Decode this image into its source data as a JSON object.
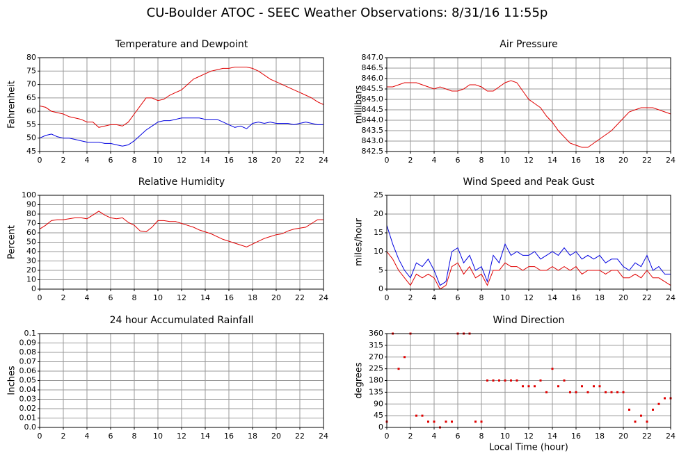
{
  "title": "CU-Boulder ATOC - SEEC Weather Observations: 8/31/16 11:55p",
  "chart_data": [
    {
      "type": "line",
      "title": "Temperature and Dewpoint",
      "y_label": "Fahrenheit",
      "x": [
        0,
        0.5,
        1,
        1.5,
        2,
        2.5,
        3,
        3.5,
        4,
        4.5,
        5,
        5.5,
        6,
        6.5,
        7,
        7.5,
        8,
        8.5,
        9,
        9.5,
        10,
        10.5,
        11,
        11.5,
        12,
        12.5,
        13,
        13.5,
        14,
        14.5,
        15,
        15.5,
        16,
        16.5,
        17,
        17.5,
        18,
        18.5,
        19,
        19.5,
        20,
        20.5,
        21,
        21.5,
        22,
        22.5,
        23,
        23.5,
        24
      ],
      "series": [
        {
          "color": "#e00000",
          "values": [
            62,
            61.5,
            60,
            59.5,
            59,
            58,
            57.5,
            57,
            56,
            56,
            54,
            54.5,
            55,
            55,
            54.5,
            56,
            59,
            62,
            65,
            65,
            64,
            64.5,
            66,
            67,
            68,
            70,
            72,
            73,
            74,
            75,
            75.5,
            76,
            76,
            76.5,
            76.5,
            76.5,
            76,
            75,
            73.5,
            72,
            71,
            70,
            69,
            68,
            67,
            66,
            65,
            63.5,
            62.5
          ]
        },
        {
          "color": "#0000e0",
          "values": [
            50,
            51,
            51.5,
            50.5,
            50,
            50,
            49.5,
            49,
            48.5,
            48.5,
            48.5,
            48,
            48,
            47.5,
            47,
            47.5,
            49,
            51,
            53,
            54.5,
            56,
            56.5,
            56.5,
            57,
            57.5,
            57.5,
            57.5,
            57.5,
            57,
            57,
            57,
            56,
            55,
            54,
            54.5,
            53.5,
            55.5,
            56,
            55.5,
            56,
            55.5,
            55.5,
            55.5,
            55,
            55.5,
            56,
            55.5,
            55,
            55
          ]
        }
      ],
      "xlim": [
        0,
        24
      ],
      "xticks": [
        0,
        2,
        4,
        6,
        8,
        10,
        12,
        14,
        16,
        18,
        20,
        22,
        24
      ],
      "ylim": [
        45,
        80
      ],
      "yticks": [
        45,
        50,
        55,
        60,
        65,
        70,
        75,
        80
      ],
      "grid": true
    },
    {
      "type": "line",
      "title": "Air Pressure",
      "y_label": "millibars",
      "x": [
        0,
        0.5,
        1,
        1.5,
        2,
        2.5,
        3,
        3.5,
        4,
        4.5,
        5,
        5.5,
        6,
        6.5,
        7,
        7.5,
        8,
        8.5,
        9,
        9.5,
        10,
        10.5,
        11,
        11.5,
        12,
        12.5,
        13,
        13.5,
        14,
        14.5,
        15,
        15.5,
        16,
        16.5,
        17,
        17.5,
        18,
        18.5,
        19,
        19.5,
        20,
        20.5,
        21,
        21.5,
        22,
        22.5,
        23,
        23.5,
        24
      ],
      "series": [
        {
          "color": "#e00000",
          "values": [
            845.6,
            845.6,
            845.7,
            845.8,
            845.8,
            845.8,
            845.7,
            845.6,
            845.5,
            845.6,
            845.5,
            845.4,
            845.4,
            845.5,
            845.7,
            845.7,
            845.6,
            845.4,
            845.4,
            845.6,
            845.8,
            845.9,
            845.8,
            845.4,
            845.0,
            844.8,
            844.6,
            844.2,
            843.9,
            843.5,
            843.2,
            842.9,
            842.8,
            842.7,
            842.7,
            842.9,
            843.1,
            843.3,
            843.5,
            843.8,
            844.1,
            844.4,
            844.5,
            844.6,
            844.6,
            844.6,
            844.5,
            844.4,
            844.3
          ]
        }
      ],
      "xlim": [
        0,
        24
      ],
      "xticks": [
        0,
        2,
        4,
        6,
        8,
        10,
        12,
        14,
        16,
        18,
        20,
        22,
        24
      ],
      "ylim": [
        842.5,
        847
      ],
      "yticks": [
        842.5,
        {
          "value": 843,
          "label": "843.0"
        },
        843.5,
        {
          "value": 844,
          "label": "844.0"
        },
        844.5,
        {
          "value": 845,
          "label": "845.0"
        },
        845.5,
        {
          "value": 846,
          "label": "846.0"
        },
        846.5,
        {
          "value": 847,
          "label": "847.0"
        }
      ],
      "grid": true
    },
    {
      "type": "line",
      "title": "Relative Humidity",
      "y_label": "Percent",
      "x": [
        0,
        0.5,
        1,
        1.5,
        2,
        2.5,
        3,
        3.5,
        4,
        4.5,
        5,
        5.5,
        6,
        6.5,
        7,
        7.5,
        8,
        8.5,
        9,
        9.5,
        10,
        10.5,
        11,
        11.5,
        12,
        12.5,
        13,
        13.5,
        14,
        14.5,
        15,
        15.5,
        16,
        16.5,
        17,
        17.5,
        18,
        18.5,
        19,
        19.5,
        20,
        20.5,
        21,
        21.5,
        22,
        22.5,
        23,
        23.5,
        24
      ],
      "series": [
        {
          "color": "#e00000",
          "values": [
            64,
            68,
            73,
            74,
            74,
            75,
            76,
            76,
            75,
            79,
            83,
            79,
            76,
            75,
            76,
            71,
            68,
            62,
            61,
            66,
            73,
            73,
            72,
            72,
            70,
            68,
            66,
            63,
            61,
            59,
            56,
            53,
            51,
            49,
            47,
            45,
            48,
            51,
            54,
            56,
            58,
            59,
            62,
            64,
            65,
            66,
            70,
            74,
            74
          ]
        }
      ],
      "xlim": [
        0,
        24
      ],
      "xticks": [
        0,
        2,
        4,
        6,
        8,
        10,
        12,
        14,
        16,
        18,
        20,
        22,
        24
      ],
      "ylim": [
        0,
        100
      ],
      "yticks": [
        0,
        10,
        20,
        30,
        40,
        50,
        60,
        70,
        80,
        90,
        100
      ],
      "grid": true
    },
    {
      "type": "line",
      "title": "Wind Speed and Peak Gust",
      "y_label": "miles/hour",
      "x": [
        0,
        0.5,
        1,
        1.5,
        2,
        2.5,
        3,
        3.5,
        4,
        4.5,
        5,
        5.5,
        6,
        6.5,
        7,
        7.5,
        8,
        8.5,
        9,
        9.5,
        10,
        10.5,
        11,
        11.5,
        12,
        12.5,
        13,
        13.5,
        14,
        14.5,
        15,
        15.5,
        16,
        16.5,
        17,
        17.5,
        18,
        18.5,
        19,
        19.5,
        20,
        20.5,
        21,
        21.5,
        22,
        22.5,
        23,
        23.5,
        24
      ],
      "series": [
        {
          "color": "#0000e0",
          "values": [
            17,
            12,
            8,
            5,
            3,
            7,
            6,
            8,
            5,
            1,
            2,
            10,
            11,
            7,
            9,
            5,
            6,
            2,
            9,
            7,
            12,
            9,
            10,
            9,
            9,
            10,
            8,
            9,
            10,
            9,
            11,
            9,
            10,
            8,
            9,
            8,
            9,
            7,
            8,
            8,
            6,
            5,
            7,
            6,
            9,
            5,
            6,
            4,
            4
          ]
        },
        {
          "color": "#e00000",
          "values": [
            10,
            8,
            5,
            3,
            1,
            4,
            3,
            4,
            3,
            0,
            1,
            6,
            7,
            4,
            6,
            3,
            4,
            1,
            5,
            5,
            7,
            6,
            6,
            5,
            6,
            6,
            5,
            5,
            6,
            5,
            6,
            5,
            6,
            4,
            5,
            5,
            5,
            4,
            5,
            5,
            3,
            3,
            4,
            3,
            5,
            3,
            3,
            2,
            1
          ]
        }
      ],
      "xlim": [
        0,
        24
      ],
      "xticks": [
        0,
        2,
        4,
        6,
        8,
        10,
        12,
        14,
        16,
        18,
        20,
        22,
        24
      ],
      "ylim": [
        0,
        25
      ],
      "yticks": [
        0,
        5,
        10,
        15,
        20,
        25
      ],
      "grid": true
    },
    {
      "type": "line",
      "title": "24 hour Accumulated Rainfall",
      "y_label": "Inches",
      "x": [
        0,
        24
      ],
      "series": [
        {
          "color": "#e00000",
          "values": [
            0,
            0
          ]
        }
      ],
      "xlim": [
        0,
        24
      ],
      "xticks": [
        0,
        2,
        4,
        6,
        8,
        10,
        12,
        14,
        16,
        18,
        20,
        22,
        24
      ],
      "ylim": [
        0,
        0.1
      ],
      "yticks": [
        {
          "value": 0,
          "label": "0.0"
        },
        0.01,
        0.02,
        0.03,
        0.04,
        0.05,
        0.06,
        0.07,
        0.08,
        0.09,
        0.1
      ],
      "grid": true
    },
    {
      "type": "scatter",
      "title": "Wind Direction",
      "y_label": "degrees",
      "x_label": "Local Time (hour)",
      "x": [
        0,
        0.5,
        1,
        1.5,
        2,
        2.5,
        3,
        3.5,
        4,
        4.5,
        5,
        5.5,
        6,
        6.5,
        7,
        7.5,
        8,
        8.5,
        9,
        9.5,
        10,
        10.5,
        11,
        11.5,
        12,
        12.5,
        13,
        13.5,
        14,
        14.5,
        15,
        15.5,
        16,
        16.5,
        17,
        17.5,
        18,
        18.5,
        19,
        19.5,
        20,
        20.5,
        21,
        21.5,
        22,
        22.5,
        23,
        23.5,
        24
      ],
      "series": [
        {
          "color": "#e00000",
          "values": [
            22,
            360,
            225,
            270,
            360,
            45,
            45,
            22,
            22,
            0,
            22,
            22,
            360,
            360,
            360,
            22,
            22,
            180,
            180,
            180,
            180,
            180,
            180,
            158,
            158,
            158,
            180,
            135,
            225,
            158,
            180,
            135,
            135,
            158,
            135,
            158,
            158,
            135,
            135,
            135,
            135,
            68,
            22,
            45,
            22,
            68,
            90,
            112,
            112
          ]
        }
      ],
      "xlim": [
        0,
        24
      ],
      "xticks": [
        0,
        2,
        4,
        6,
        8,
        10,
        12,
        14,
        16,
        18,
        20,
        22,
        24
      ],
      "ylim": [
        0,
        360
      ],
      "yticks": [
        0,
        45,
        90,
        135,
        180,
        225,
        270,
        315,
        360
      ],
      "grid": true
    }
  ]
}
